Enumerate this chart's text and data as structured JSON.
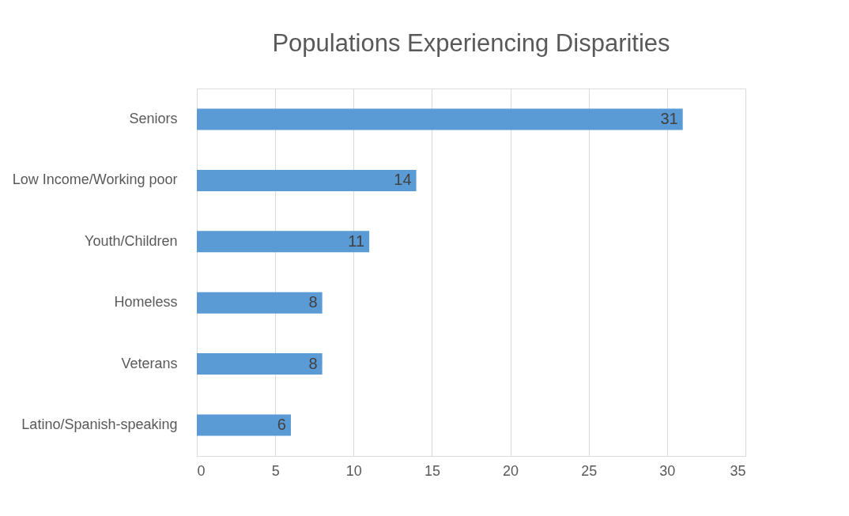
{
  "chart_data": {
    "type": "bar",
    "orientation": "horizontal",
    "title": "Populations Experiencing Disparities",
    "categories": [
      "Seniors",
      "Low Income/Working poor",
      "Youth/Children",
      "Homeless",
      "Veterans",
      "Latino/Spanish-speaking"
    ],
    "values": [
      31,
      14,
      11,
      8,
      8,
      6
    ],
    "color": "#5b9bd5",
    "xlim": [
      0,
      35
    ],
    "xticks": [
      0,
      5,
      10,
      15,
      20,
      25,
      30,
      35
    ],
    "grid": "x",
    "data_labels": true
  }
}
